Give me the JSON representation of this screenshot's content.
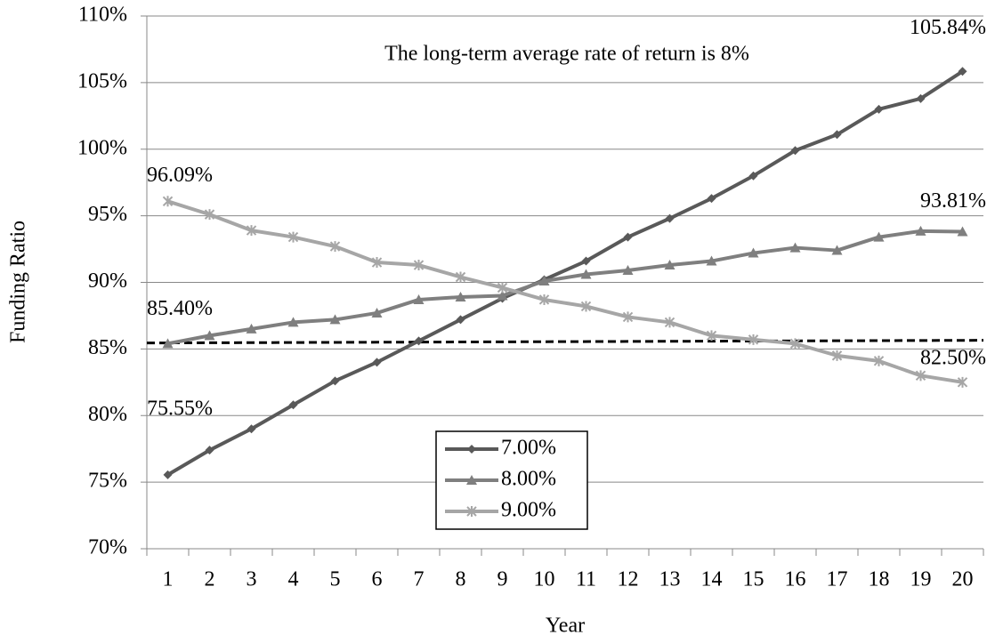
{
  "chart_data": {
    "type": "line",
    "annotation": "The long-term average rate of return is 8%",
    "x_label": "Year",
    "y_label": "Funding Ratio",
    "categories": [
      "1",
      "2",
      "3",
      "4",
      "5",
      "6",
      "7",
      "8",
      "9",
      "10",
      "11",
      "12",
      "13",
      "14",
      "15",
      "16",
      "17",
      "18",
      "19",
      "20"
    ],
    "series": [
      {
        "name": "7.00%",
        "color": "#595959",
        "marker": "diamond",
        "values": [
          75.55,
          77.4,
          79.0,
          80.8,
          82.6,
          84.0,
          85.6,
          87.2,
          88.8,
          90.2,
          91.6,
          93.4,
          94.8,
          96.3,
          98.0,
          99.9,
          101.1,
          103.0,
          103.8,
          105.84
        ],
        "value_labels": [
          "75.55%",
          null,
          null,
          null,
          null,
          null,
          null,
          null,
          null,
          null,
          null,
          null,
          null,
          null,
          null,
          null,
          null,
          null,
          null,
          "105.84%"
        ]
      },
      {
        "name": "8.00%",
        "color": "#7f7f7f",
        "marker": "triangle",
        "values": [
          85.4,
          86.0,
          86.5,
          87.0,
          87.2,
          87.7,
          88.7,
          88.9,
          89.0,
          90.1,
          90.6,
          90.9,
          91.3,
          91.6,
          92.2,
          92.6,
          92.4,
          93.4,
          93.85,
          93.81
        ],
        "value_labels": [
          "85.40%",
          null,
          null,
          null,
          null,
          null,
          null,
          null,
          null,
          null,
          null,
          null,
          null,
          null,
          null,
          null,
          null,
          null,
          null,
          "93.81%"
        ]
      },
      {
        "name": "9.00%",
        "color": "#a6a6a6",
        "marker": "asterisk",
        "values": [
          96.09,
          95.1,
          93.9,
          93.4,
          92.7,
          91.5,
          91.3,
          90.4,
          89.6,
          88.7,
          88.2,
          87.4,
          87.0,
          86.0,
          85.7,
          85.4,
          84.5,
          84.1,
          83.0,
          82.5
        ],
        "value_labels": [
          "96.09%",
          null,
          null,
          null,
          null,
          null,
          null,
          null,
          null,
          null,
          null,
          null,
          null,
          null,
          null,
          null,
          null,
          null,
          null,
          "82.50%"
        ]
      }
    ],
    "reference_line": [
      85.45,
      85.65
    ],
    "ylim": [
      70,
      110
    ],
    "yticks": [
      {
        "value": 70,
        "label": "70%"
      },
      {
        "value": 75,
        "label": "75%"
      },
      {
        "value": 80,
        "label": "80%"
      },
      {
        "value": 85,
        "label": "85%"
      },
      {
        "value": 90,
        "label": "90%"
      },
      {
        "value": 95,
        "label": "95%"
      },
      {
        "value": 100,
        "label": "100%"
      },
      {
        "value": 105,
        "label": "105%"
      },
      {
        "value": 110,
        "label": "110%"
      }
    ],
    "grid": true
  }
}
